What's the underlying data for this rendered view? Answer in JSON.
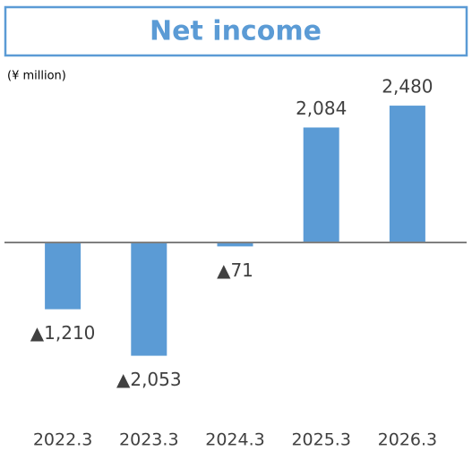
{
  "chart_data": {
    "type": "bar",
    "title": "Net income",
    "unit_label": "(¥ million)",
    "categories": [
      "2022.3",
      "2023.3",
      "2024.3",
      "2025.3",
      "2026.3"
    ],
    "values": [
      -1210,
      -2053,
      -71,
      2084,
      2480
    ],
    "value_labels": [
      "▲1,210",
      "▲2,053",
      "▲71",
      "2,084",
      "2,480"
    ],
    "color": "#5b9bd5",
    "ylim": [
      -3000,
      3000
    ]
  }
}
